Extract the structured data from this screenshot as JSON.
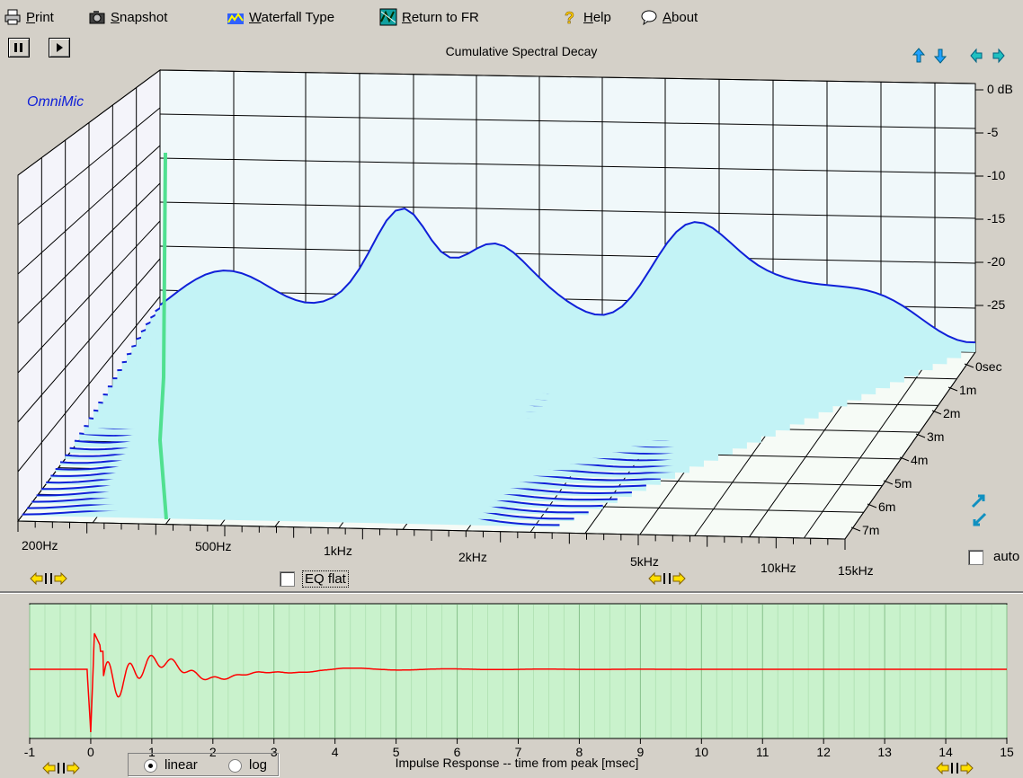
{
  "toolbar": {
    "print": "Print",
    "snapshot": "Snapshot",
    "waterfall_type": "Waterfall Type",
    "return_fr": "Return to FR",
    "help": "Help",
    "about": "About"
  },
  "waterfall": {
    "title": "Cumulative Spectral Decay",
    "watermark": "OmniMic",
    "db_ticks": [
      "0 dB",
      "-5",
      "-10",
      "-15",
      "-20",
      "-25"
    ],
    "time_ticks": [
      "0sec",
      "1m",
      "2m",
      "3m",
      "4m",
      "5m",
      "6m",
      "7m"
    ],
    "freq_labels": [
      "200Hz",
      "500Hz",
      "1kHz",
      "2kHz",
      "5kHz",
      "10kHz",
      "15kHz"
    ],
    "eq_flat": "EQ flat",
    "auto": "auto"
  },
  "impulse": {
    "title": "Impulse Response  -- time from peak [msec]",
    "x_ticks": [
      "-1",
      "0",
      "1",
      "2",
      "3",
      "4",
      "5",
      "6",
      "7",
      "8",
      "9",
      "10",
      "11",
      "12",
      "13",
      "14",
      "15"
    ],
    "mode_linear": "linear",
    "mode_log": "log",
    "selected_mode": "linear",
    "colors": {
      "background": "#c9f2cc",
      "trace": "#ff0000",
      "grid": "#9fd0a3"
    }
  },
  "colors": {
    "surface_fill": "#c3f3f6",
    "surface_line": "#1020d8",
    "panel": "#d4d0c8"
  }
}
